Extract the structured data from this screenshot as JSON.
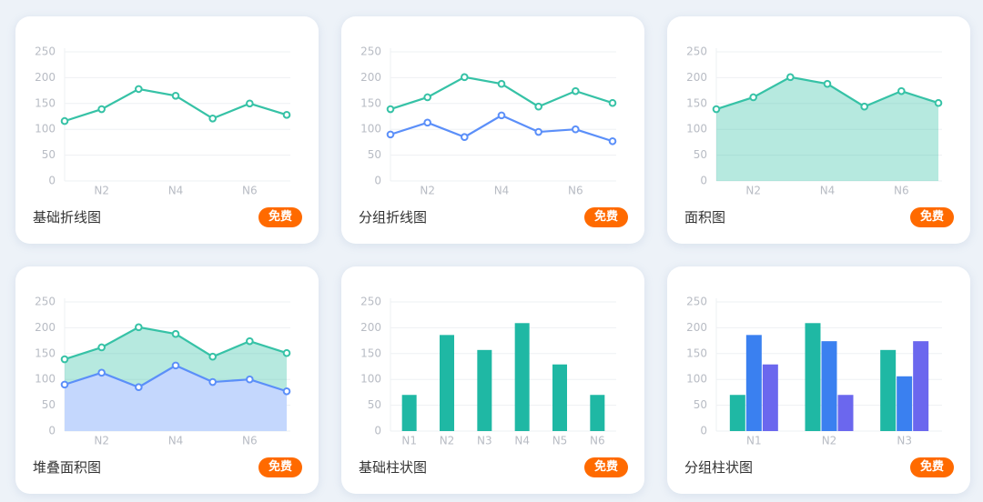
{
  "chart_data": [
    {
      "type": "line",
      "title": "基础折线图",
      "badge": "免费",
      "categories": [
        null,
        "N2",
        null,
        "N4",
        null,
        "N6",
        null
      ],
      "series": [
        {
          "color": "#36c2a6",
          "values": [
            116,
            139,
            178,
            165,
            121,
            150,
            128
          ]
        }
      ],
      "ylim": [
        0,
        250
      ],
      "yticks": [
        0,
        50,
        100,
        150,
        200,
        250
      ],
      "grid": true
    },
    {
      "type": "line",
      "title": "分组折线图",
      "badge": "免费",
      "categories": [
        null,
        "N2",
        null,
        "N4",
        null,
        "N6",
        null
      ],
      "series": [
        {
          "color": "#36c2a6",
          "values": [
            139,
            162,
            201,
            188,
            144,
            174,
            151
          ]
        },
        {
          "color": "#5b8ff9",
          "values": [
            90,
            113,
            85,
            127,
            95,
            100,
            77
          ]
        }
      ],
      "ylim": [
        0,
        250
      ],
      "yticks": [
        0,
        50,
        100,
        150,
        200,
        250
      ],
      "grid": true
    },
    {
      "type": "area",
      "title": "面积图",
      "badge": "免费",
      "categories": [
        null,
        "N2",
        null,
        "N4",
        null,
        "N6",
        null
      ],
      "series": [
        {
          "color": "#36c2a6",
          "values": [
            139,
            162,
            201,
            188,
            144,
            174,
            151
          ]
        }
      ],
      "ylim": [
        0,
        250
      ],
      "yticks": [
        0,
        50,
        100,
        150,
        200,
        250
      ],
      "grid": true
    },
    {
      "type": "area",
      "title": "堆叠面积图",
      "badge": "免费",
      "categories": [
        null,
        "N2",
        null,
        "N4",
        null,
        "N6",
        null
      ],
      "series": [
        {
          "color": "#36c2a6",
          "values": [
            139,
            162,
            201,
            188,
            144,
            174,
            151
          ]
        },
        {
          "color": "#5b8ff9",
          "values": [
            90,
            113,
            85,
            127,
            95,
            100,
            77
          ]
        }
      ],
      "ylim": [
        0,
        250
      ],
      "yticks": [
        0,
        50,
        100,
        150,
        200,
        250
      ],
      "grid": true
    },
    {
      "type": "bar",
      "title": "基础柱状图",
      "badge": "免费",
      "categories": [
        "N1",
        "N2",
        "N3",
        "N4",
        "N5",
        "N6"
      ],
      "series": [
        {
          "color": "#1fb8a4",
          "values": [
            70,
            186,
            157,
            209,
            129,
            70
          ]
        }
      ],
      "ylim": [
        0,
        250
      ],
      "yticks": [
        0,
        50,
        100,
        150,
        200,
        250
      ],
      "grid": true
    },
    {
      "type": "bar",
      "title": "分组柱状图",
      "badge": "免费",
      "categories": [
        "N1",
        "N2",
        "N3"
      ],
      "series": [
        {
          "color": "#1fb8a4",
          "values": [
            70,
            209,
            157
          ]
        },
        {
          "color": "#3a80f0",
          "values": [
            186,
            174,
            106
          ]
        },
        {
          "color": "#6b67ee",
          "values": [
            129,
            70,
            174
          ]
        }
      ],
      "ylim": [
        0,
        250
      ],
      "yticks": [
        0,
        50,
        100,
        150,
        200,
        250
      ],
      "grid": true
    }
  ]
}
